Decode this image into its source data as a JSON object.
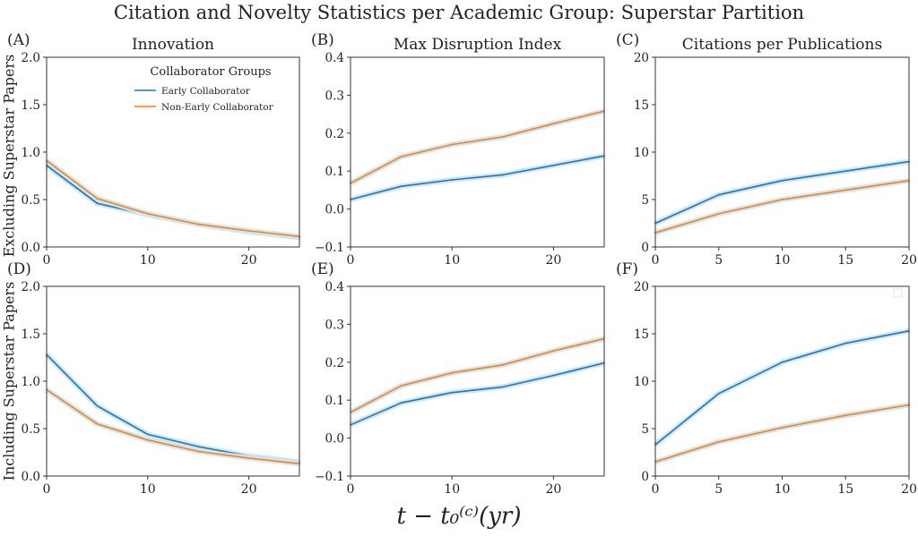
{
  "figure": {
    "title": "Citation and Novelty Statistics per Academic Group: Superstar Partition",
    "xlabel": "t − t₀⁽ᶜ⁾(yr)",
    "row_labels": [
      "Excluding Superstar Papers",
      "Including Superstar Papers"
    ],
    "legend": {
      "title": "Collaborator Groups",
      "entries": [
        "Early Collaborator",
        "Non-Early Collaborator"
      ]
    },
    "colors": {
      "early": "#1f77b4",
      "nonearly": "#ff7f0e",
      "band": "#cfe6f5"
    }
  },
  "chart_data": [
    {
      "type": "line",
      "panel": "(A)",
      "title": "Innovation",
      "x": [
        0,
        5,
        10,
        15,
        20,
        25
      ],
      "xlim": [
        0,
        25
      ],
      "xticks": [
        0,
        10,
        20
      ],
      "ylim": [
        0,
        2.0
      ],
      "yticks": [
        0.0,
        0.5,
        1.0,
        1.5,
        2.0
      ],
      "ytick_labels": [
        "0.0",
        "0.5",
        "1.0",
        "1.5",
        "2.0"
      ],
      "series": [
        {
          "name": "Early Collaborator",
          "values": [
            0.86,
            0.46,
            0.34,
            0.24,
            0.16,
            0.1
          ]
        },
        {
          "name": "Non-Early Collaborator",
          "values": [
            0.91,
            0.51,
            0.35,
            0.24,
            0.17,
            0.11
          ]
        }
      ]
    },
    {
      "type": "line",
      "panel": "(B)",
      "title": "Max Disruption Index",
      "x": [
        0,
        5,
        10,
        15,
        20,
        25
      ],
      "xlim": [
        0,
        25
      ],
      "xticks": [
        0,
        10,
        20
      ],
      "ylim": [
        -0.1,
        0.4
      ],
      "yticks": [
        -0.1,
        0.0,
        0.1,
        0.2,
        0.3,
        0.4
      ],
      "ytick_labels": [
        "−0.1",
        "0.0",
        "0.1",
        "0.2",
        "0.3",
        "0.4"
      ],
      "series": [
        {
          "name": "Early Collaborator",
          "values": [
            0.025,
            0.06,
            0.077,
            0.09,
            0.115,
            0.14
          ]
        },
        {
          "name": "Non-Early Collaborator",
          "values": [
            0.068,
            0.138,
            0.17,
            0.19,
            0.225,
            0.258
          ]
        }
      ]
    },
    {
      "type": "line",
      "panel": "(C)",
      "title": "Citations per Publications",
      "x": [
        0,
        5,
        10,
        15,
        20
      ],
      "xlim": [
        0,
        20
      ],
      "xticks": [
        0,
        5,
        10,
        15,
        20
      ],
      "ylim": [
        0,
        20
      ],
      "yticks": [
        0,
        5,
        10,
        15,
        20
      ],
      "ytick_labels": [
        "0",
        "5",
        "10",
        "15",
        "20"
      ],
      "series": [
        {
          "name": "Early Collaborator",
          "values": [
            2.5,
            5.5,
            7,
            8,
            9
          ]
        },
        {
          "name": "Non-Early Collaborator",
          "values": [
            1.5,
            3.5,
            5,
            6,
            7
          ]
        }
      ]
    },
    {
      "type": "line",
      "panel": "(D)",
      "title": "",
      "x": [
        0,
        5,
        10,
        15,
        20,
        25
      ],
      "xlim": [
        0,
        25
      ],
      "xticks": [
        0,
        10,
        20
      ],
      "ylim": [
        0,
        2.0
      ],
      "yticks": [
        0.0,
        0.5,
        1.0,
        1.5,
        2.0
      ],
      "ytick_labels": [
        "0.0",
        "0.5",
        "1.0",
        "1.5",
        "2.0"
      ],
      "series": [
        {
          "name": "Early Collaborator",
          "values": [
            1.28,
            0.74,
            0.44,
            0.31,
            0.21,
            0.15
          ]
        },
        {
          "name": "Non-Early Collaborator",
          "values": [
            0.91,
            0.55,
            0.38,
            0.26,
            0.19,
            0.13
          ]
        }
      ]
    },
    {
      "type": "line",
      "panel": "(E)",
      "title": "",
      "x": [
        0,
        5,
        10,
        15,
        20,
        25
      ],
      "xlim": [
        0,
        25
      ],
      "xticks": [
        0,
        10,
        20
      ],
      "ylim": [
        -0.1,
        0.4
      ],
      "yticks": [
        -0.1,
        0.0,
        0.1,
        0.2,
        0.3,
        0.4
      ],
      "ytick_labels": [
        "−0.1",
        "0.0",
        "0.1",
        "0.2",
        "0.3",
        "0.4"
      ],
      "series": [
        {
          "name": "Early Collaborator",
          "values": [
            0.035,
            0.093,
            0.12,
            0.135,
            0.165,
            0.198
          ]
        },
        {
          "name": "Non-Early Collaborator",
          "values": [
            0.068,
            0.138,
            0.172,
            0.193,
            0.23,
            0.262
          ]
        }
      ]
    },
    {
      "type": "line",
      "panel": "(F)",
      "title": "",
      "x": [
        0,
        5,
        10,
        15,
        20
      ],
      "xlim": [
        0,
        20
      ],
      "xticks": [
        0,
        5,
        10,
        15,
        20
      ],
      "ylim": [
        0,
        20
      ],
      "yticks": [
        0,
        5,
        10,
        15,
        20
      ],
      "ytick_labels": [
        "0",
        "5",
        "10",
        "15",
        "20"
      ],
      "series": [
        {
          "name": "Early Collaborator",
          "values": [
            3.3,
            8.7,
            12,
            14,
            15.3
          ]
        },
        {
          "name": "Non-Early Collaborator",
          "values": [
            1.5,
            3.6,
            5.1,
            6.4,
            7.5
          ]
        }
      ]
    }
  ]
}
